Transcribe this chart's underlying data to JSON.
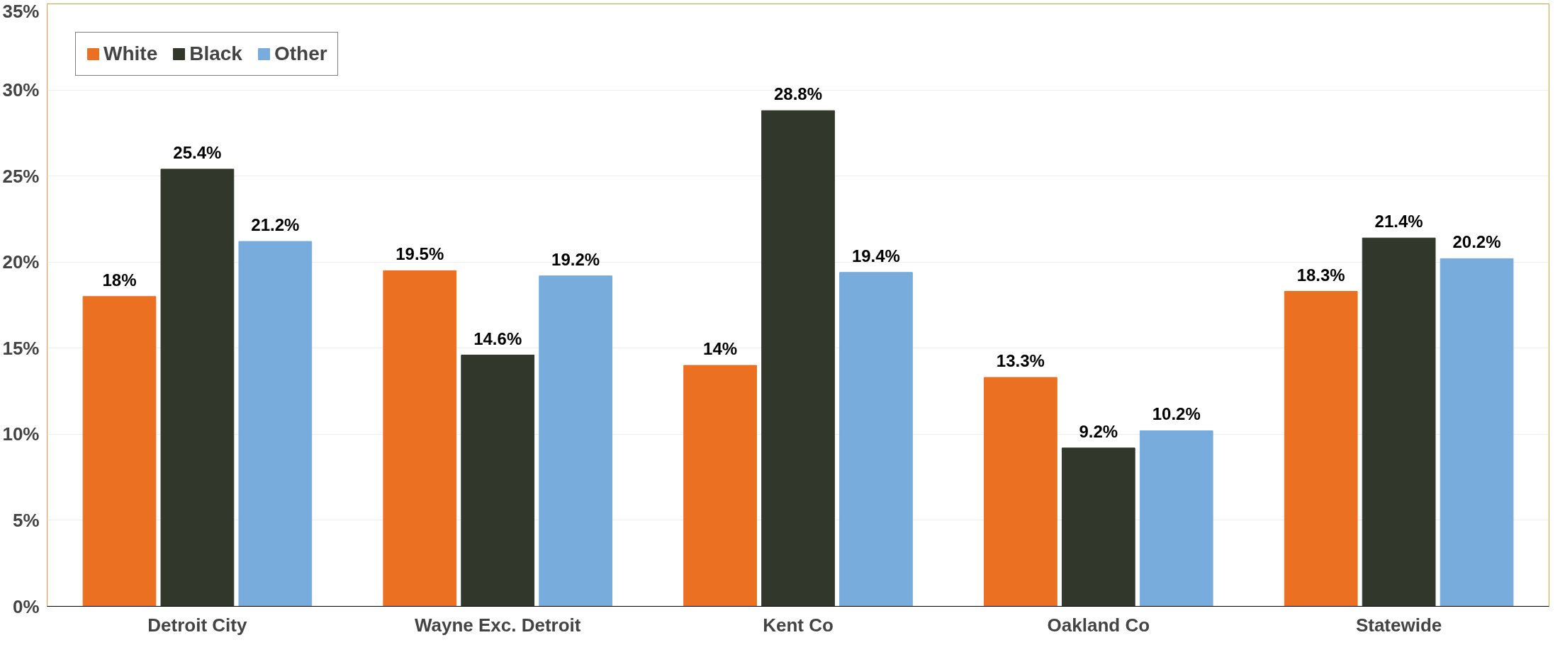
{
  "chart_data": {
    "type": "bar",
    "categories": [
      "Detroit City",
      "Wayne Exc. Detroit",
      "Kent Co",
      "Oakland Co",
      "Statewide"
    ],
    "series": [
      {
        "name": "White",
        "color": "#eb7022",
        "values": [
          18,
          19.5,
          14,
          13.3,
          18.3
        ],
        "value_labels": [
          "18%",
          "19.5%",
          "14%",
          "13.3%",
          "18.3%"
        ]
      },
      {
        "name": "Black",
        "color": "#31372b",
        "values": [
          25.4,
          14.6,
          28.8,
          9.2,
          21.4
        ],
        "value_labels": [
          "25.4%",
          "14.6%",
          "28.8%",
          "9.2%",
          "21.4%"
        ]
      },
      {
        "name": "Other",
        "color": "#77acdc",
        "values": [
          21.2,
          19.2,
          19.4,
          10.2,
          20.2
        ],
        "value_labels": [
          "21.2%",
          "19.2%",
          "19.4%",
          "10.2%",
          "20.2%"
        ]
      }
    ],
    "ylim": [
      0,
      35
    ],
    "yticks": [
      {
        "value": 0,
        "label": "0%"
      },
      {
        "value": 5,
        "label": "5%"
      },
      {
        "value": 10,
        "label": "10%"
      },
      {
        "value": 15,
        "label": "15%"
      },
      {
        "value": 20,
        "label": "20%"
      },
      {
        "value": 25,
        "label": "25%"
      },
      {
        "value": 30,
        "label": "30%"
      },
      {
        "value": 35,
        "label": "35%"
      }
    ],
    "grid": "y",
    "legend": "top left"
  }
}
